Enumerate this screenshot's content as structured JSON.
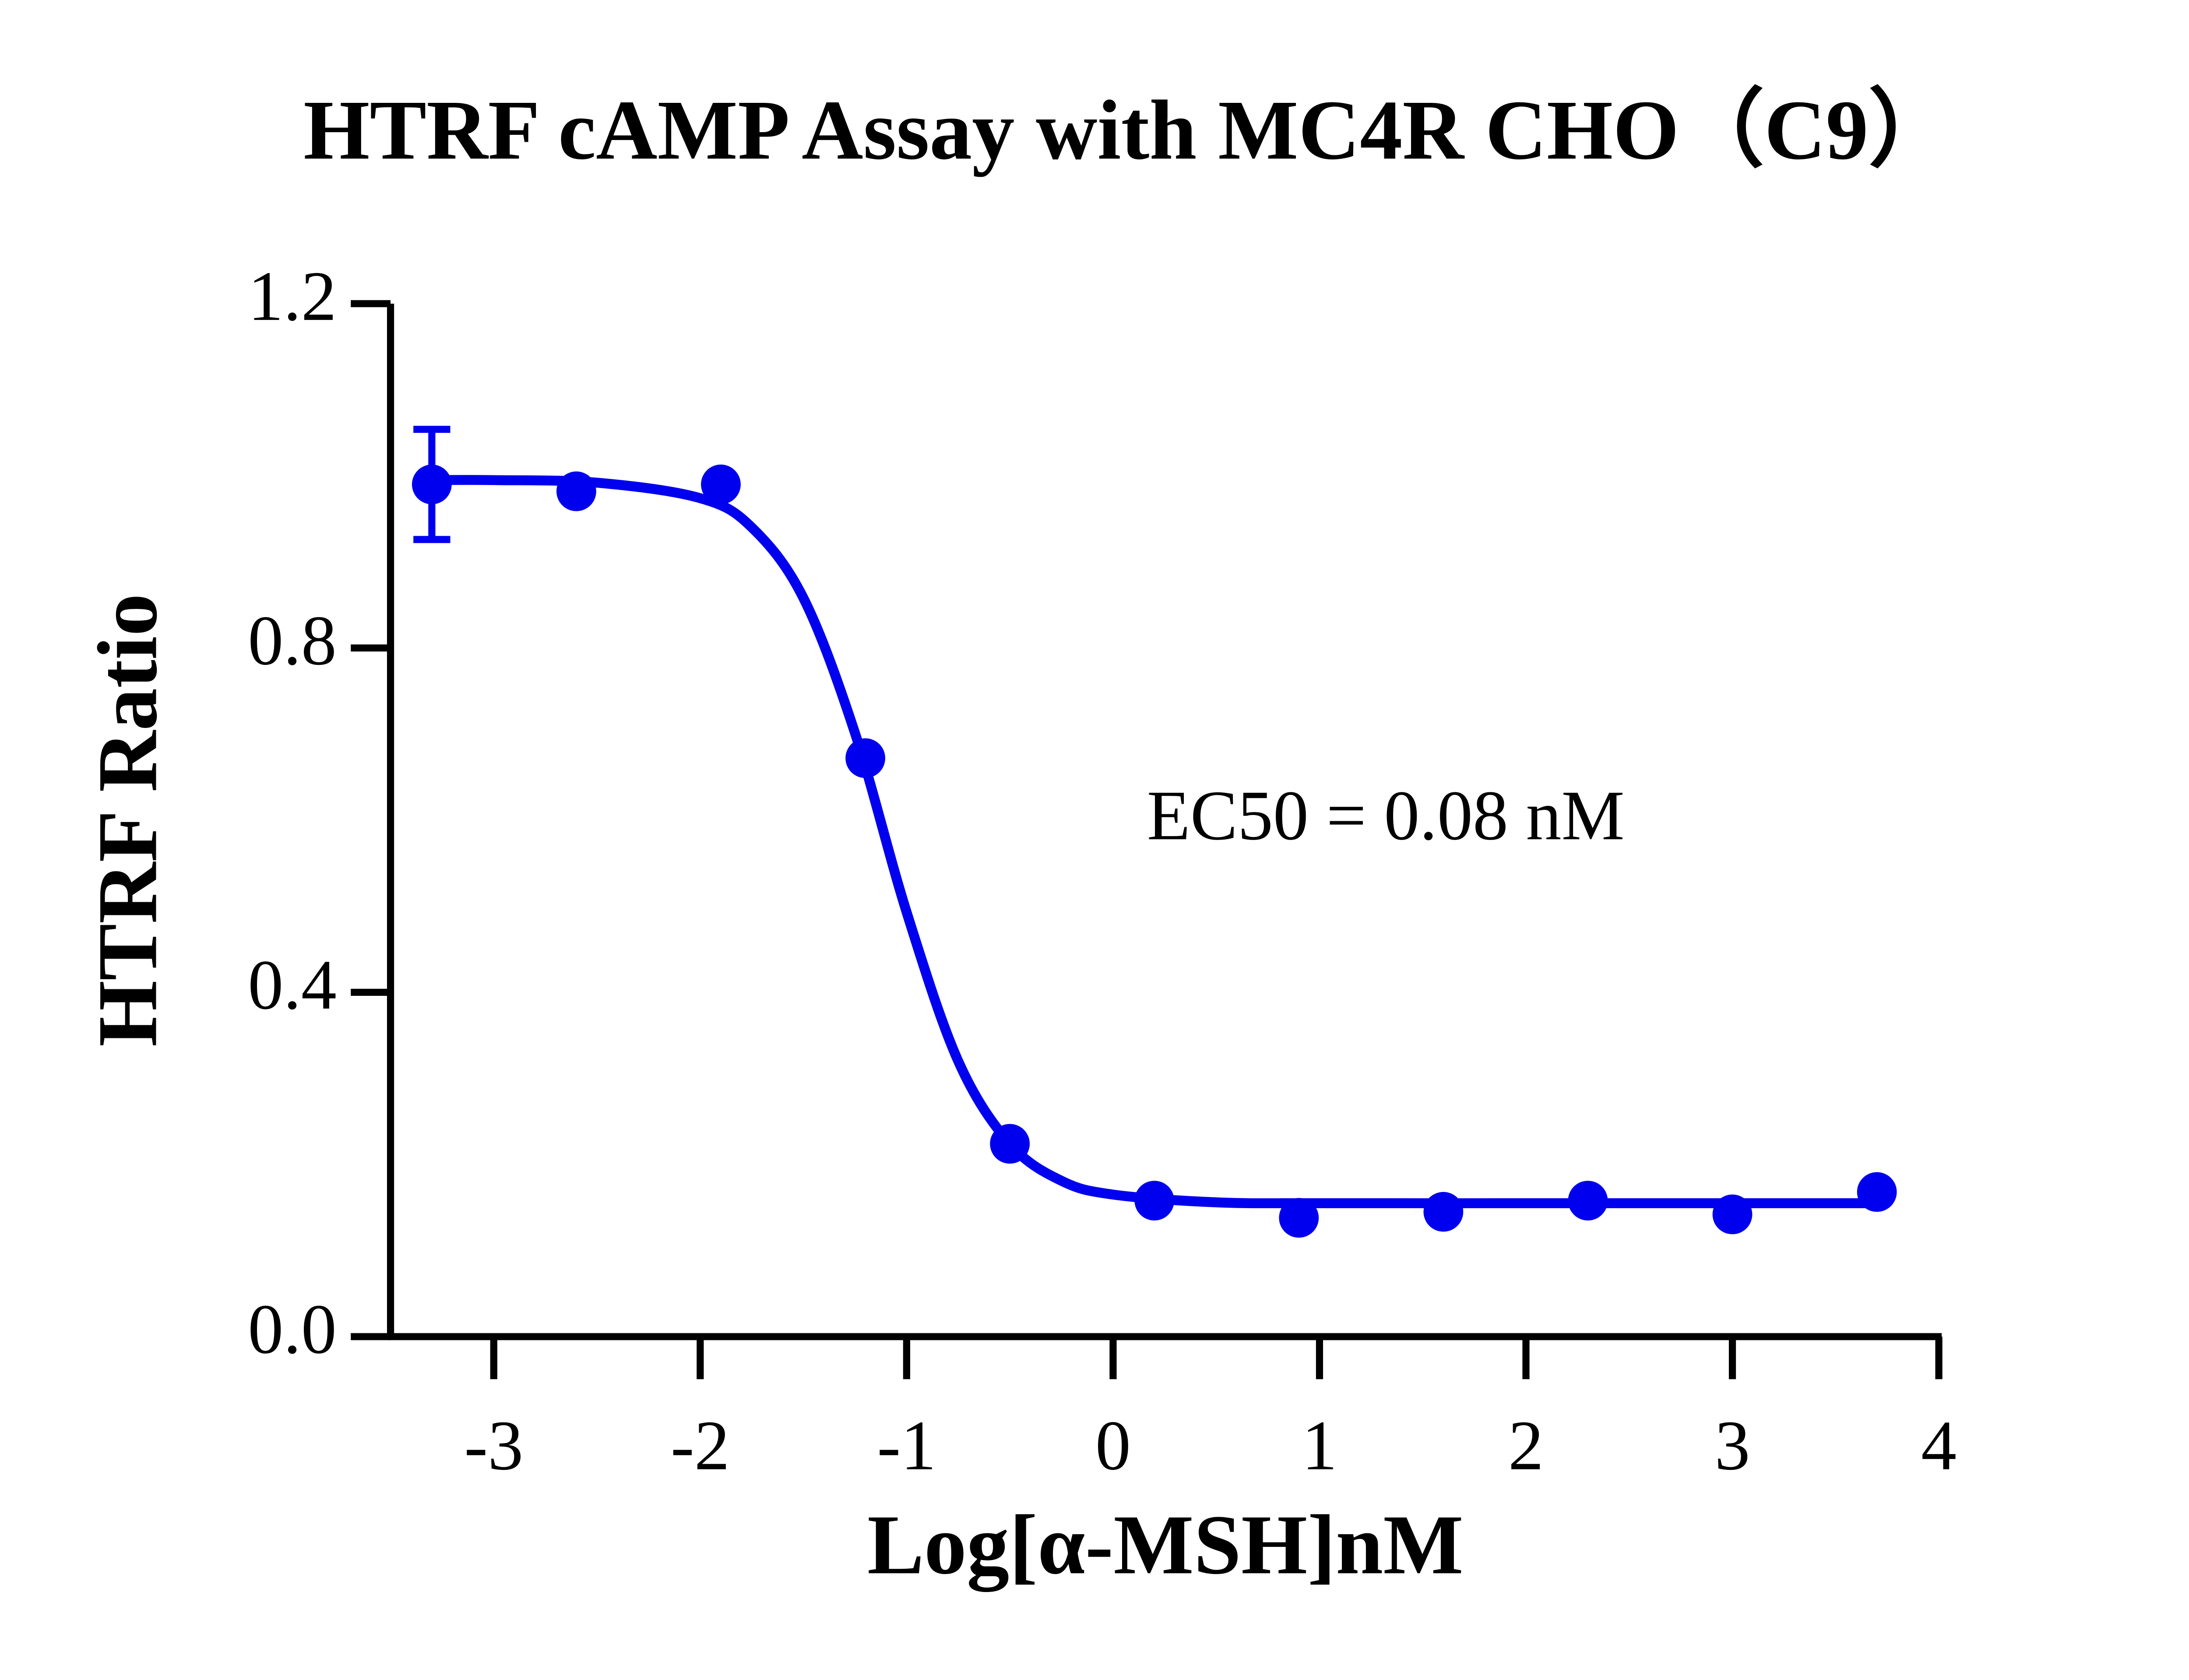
{
  "chart_data": {
    "type": "scatter",
    "title": "HTRF cAMP Assay with MC4R CHO（C9）",
    "x_label": "Log[α-MSH]nM",
    "y_label": "HTRF Ratio",
    "annotation": "EC50 = 0.08 nM",
    "color": "#0000ee",
    "x": [
      -3.3,
      -2.6,
      -1.9,
      -1.2,
      -0.5,
      0.2,
      0.9,
      1.6,
      2.3,
      3.0,
      3.7
    ],
    "values": [
      0.99,
      0.982,
      0.99,
      0.672,
      0.224,
      0.158,
      0.138,
      0.145,
      0.158,
      0.142,
      0.168
    ],
    "errors": [
      0.064,
      null,
      null,
      null,
      null,
      null,
      null,
      null,
      null,
      null,
      null
    ],
    "fit_curve": {
      "x": [
        -3.3,
        -3.0,
        -2.5,
        -2.0,
        -1.75,
        -1.5,
        -1.25,
        -1.0,
        -0.75,
        -0.5,
        -0.25,
        0,
        0.5,
        1,
        2,
        3,
        3.7
      ],
      "values": [
        0.995,
        0.995,
        0.992,
        0.974,
        0.94,
        0.858,
        0.701,
        0.493,
        0.32,
        0.224,
        0.181,
        0.165,
        0.156,
        0.155,
        0.155,
        0.155,
        0.155
      ]
    },
    "xlim": [
      -3.5,
      4
    ],
    "xticks": [
      -3,
      -2,
      -1,
      0,
      1,
      2,
      3,
      4
    ],
    "ylim": [
      0,
      1.2
    ],
    "yticks": [
      {
        "value": 0,
        "label": "0.0"
      },
      0.4,
      0.8,
      1.2
    ]
  }
}
